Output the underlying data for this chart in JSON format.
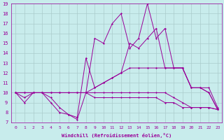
{
  "xlabel": "Windchill (Refroidissement éolien,°C)",
  "background_color": "#c8ecec",
  "grid_color": "#aacccc",
  "line_color": "#990099",
  "xlim": [
    -0.5,
    23.5
  ],
  "ylim": [
    7,
    19
  ],
  "yticks": [
    7,
    8,
    9,
    10,
    11,
    12,
    13,
    14,
    15,
    16,
    17,
    18,
    19
  ],
  "xticks": [
    0,
    1,
    2,
    3,
    4,
    5,
    6,
    7,
    8,
    9,
    10,
    11,
    12,
    13,
    14,
    15,
    16,
    17,
    18,
    19,
    20,
    21,
    22,
    23
  ],
  "lines": [
    {
      "x": [
        0,
        1,
        2,
        3,
        4,
        5,
        6,
        7,
        8,
        9,
        10,
        11,
        12,
        13,
        14,
        15,
        16,
        17,
        18,
        19,
        20,
        21,
        22,
        23
      ],
      "y": [
        10,
        9,
        10,
        10,
        9,
        8,
        7.8,
        7.3,
        10,
        15.5,
        15,
        17,
        18,
        14.5,
        15.5,
        19,
        15.5,
        16.5,
        12.5,
        12.5,
        10.5,
        10.5,
        10,
        8.3
      ]
    },
    {
      "x": [
        0,
        1,
        2,
        3,
        4,
        5,
        6,
        7,
        8,
        9,
        10,
        11,
        12,
        13,
        14,
        15,
        16,
        17,
        18,
        19,
        20,
        21,
        22,
        23
      ],
      "y": [
        10,
        9.5,
        10,
        10,
        9.5,
        8.5,
        7.8,
        7.5,
        13.5,
        10.5,
        11,
        11.5,
        12,
        15,
        14.5,
        15.5,
        16.5,
        12.5,
        12.5,
        12.5,
        10.5,
        10.5,
        10,
        8.3
      ]
    },
    {
      "x": [
        0,
        1,
        2,
        3,
        4,
        5,
        6,
        7,
        8,
        9,
        10,
        11,
        12,
        13,
        14,
        15,
        16,
        17,
        18,
        19,
        20,
        21,
        22,
        23
      ],
      "y": [
        10,
        10,
        10,
        10,
        10,
        10,
        10,
        10,
        10,
        10.5,
        11,
        11.5,
        12,
        12.5,
        12.5,
        12.5,
        12.5,
        12.5,
        12.5,
        12.5,
        10.5,
        10.5,
        10.5,
        8.5
      ]
    },
    {
      "x": [
        0,
        1,
        2,
        3,
        4,
        5,
        6,
        7,
        8,
        9,
        10,
        11,
        12,
        13,
        14,
        15,
        16,
        17,
        18,
        19,
        20,
        21,
        22,
        23
      ],
      "y": [
        10,
        10,
        10,
        10,
        10,
        10,
        10,
        10,
        10,
        10,
        10,
        10,
        10,
        10,
        10,
        10,
        10,
        10,
        9.5,
        9,
        8.5,
        8.5,
        8.5,
        8.3
      ]
    },
    {
      "x": [
        0,
        1,
        2,
        3,
        4,
        5,
        6,
        7,
        8,
        9,
        10,
        11,
        12,
        13,
        14,
        15,
        16,
        17,
        18,
        19,
        20,
        21,
        22,
        23
      ],
      "y": [
        10,
        10,
        10,
        10,
        10,
        10,
        10,
        10,
        10,
        9.5,
        9.5,
        9.5,
        9.5,
        9.5,
        9.5,
        9.5,
        9.5,
        9,
        9,
        8.5,
        8.5,
        8.5,
        8.5,
        8.3
      ]
    }
  ]
}
